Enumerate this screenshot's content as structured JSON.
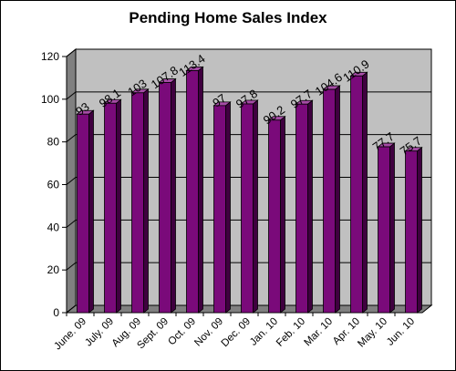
{
  "chart_data": {
    "type": "bar",
    "title": "Pending Home Sales Index",
    "xlabel": "",
    "ylabel": "",
    "categories": [
      "June. 09",
      "July. 09",
      "Aug. 09",
      "Sept. 09",
      "Oct. 09",
      "Nov. 09",
      "Dec. 09",
      "Jan. 10",
      "Feb. 10",
      "Mar. 10",
      "Apr. 10",
      "May. 10",
      "Jun. 10"
    ],
    "values": [
      93,
      98.1,
      103,
      107.8,
      113.4,
      97,
      97.8,
      90.2,
      97.7,
      104.6,
      110.9,
      77.7,
      75.7
    ],
    "data_labels": [
      "93",
      "98.1",
      "103",
      "107.8",
      "113.4",
      "97",
      "97.8",
      "90.2",
      "97.7",
      "104.6",
      "110.9",
      "77.7",
      "75.7"
    ],
    "yticks": [
      "0",
      "20",
      "40",
      "60",
      "80",
      "100",
      "120"
    ],
    "ylim": [
      0,
      120
    ],
    "grid": true,
    "legend": "none",
    "colors": {
      "bar_front": "#7a0a7a",
      "bar_side": "#3f003f",
      "bar_top": "#a64ca6",
      "plot_back": "#c0c0c0",
      "plot_floor": "#808080",
      "gridline": "#000000"
    }
  }
}
